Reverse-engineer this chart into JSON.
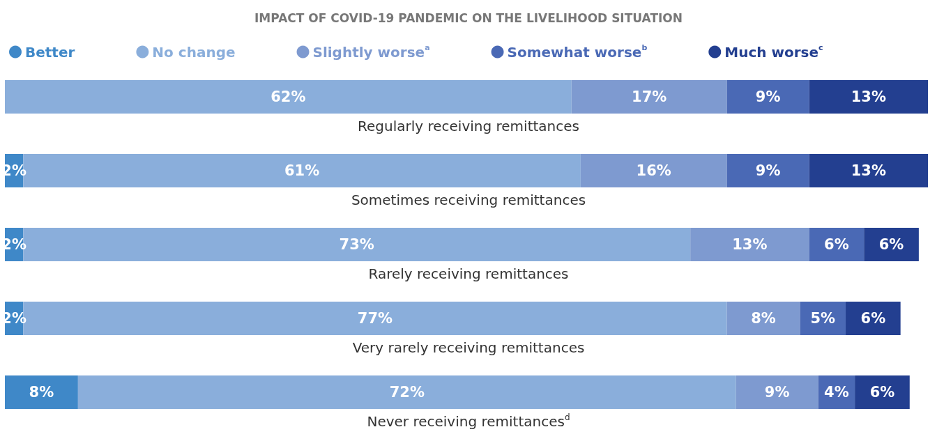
{
  "chart_data": {
    "type": "bar",
    "orientation": "horizontal",
    "stacked": true,
    "title": "IMPACT OF COVID-19 PANDEMIC ON THE LIVELIHOOD SITUATION",
    "categories": [
      "Regularly receiving remittances",
      "Sometimes receiving remittances",
      "Rarely receiving remittances",
      "Very rarely receiving remittances",
      "Never receiving remittances$^{d}$"
    ],
    "series": [
      {
        "name": "Better",
        "color": "#3f88c8",
        "values": [
          null,
          2,
          2,
          2,
          8
        ],
        "value_labels": [
          null,
          "2%",
          "2%",
          "2%",
          "8%"
        ]
      },
      {
        "name": "No change",
        "color": "#8aaedb",
        "values": [
          62,
          61,
          73,
          77,
          72
        ],
        "value_labels": [
          "62%",
          "61%",
          "73%",
          "77%",
          "72%"
        ]
      },
      {
        "name": "Slightly worse$^{a}$",
        "color": "#7e9ad0",
        "values": [
          17,
          16,
          13,
          8,
          9
        ],
        "value_labels": [
          "17%",
          "16%",
          "13%",
          "8%",
          "9%"
        ]
      },
      {
        "name": "Somewhat worse$^{b}$",
        "color": "#4a69b5",
        "values": [
          9,
          9,
          6,
          5,
          4
        ],
        "value_labels": [
          "9%",
          "9%",
          "6%",
          "5%",
          "4%"
        ]
      },
      {
        "name": "Much worse$^{c}$",
        "color": "#233f90",
        "values": [
          13,
          13,
          6,
          6,
          6
        ],
        "value_labels": [
          "13%",
          "13%",
          "6%",
          "6%",
          "6%"
        ]
      }
    ],
    "legend": "top"
  }
}
